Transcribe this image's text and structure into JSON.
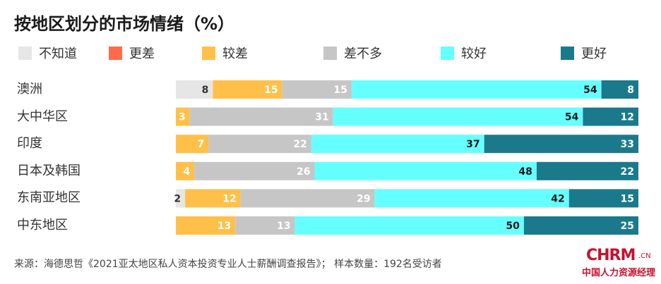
{
  "title": "按地区划分的市场情绪（%）",
  "source": "来源：海德思哲《2021亚太地区私人资本投资专业人士薪酬调查报告》；  样本数量：192名受访者",
  "logo": {
    "text": "CHRM",
    "suffix": ".CN",
    "subtitle": "中国人力资源经理"
  },
  "chart_data": {
    "type": "bar",
    "orientation": "horizontal",
    "stacked": true,
    "title": "按地区划分的市场情绪（%）",
    "unit": "%",
    "legend_position": "top",
    "grid": false,
    "categories": [
      "澳洲",
      "大中华区",
      "印度",
      "日本及韩国",
      "东南亚地区",
      "中东地区"
    ],
    "series": [
      {
        "name": "不知道",
        "color": "#e6e6e6",
        "label_color": "#333333",
        "values": [
          8,
          0,
          0,
          0,
          2,
          0
        ]
      },
      {
        "name": "更差",
        "color": "#ff6b4a",
        "label_color": "#ffffff",
        "values": [
          0,
          0,
          0,
          0,
          0,
          0
        ]
      },
      {
        "name": "较差",
        "color": "#ffc04a",
        "label_color": "#ffffff",
        "values": [
          15,
          3,
          7,
          4,
          12,
          13
        ]
      },
      {
        "name": "差不多",
        "color": "#c6c6c6",
        "label_color": "#ffffff",
        "values": [
          15,
          31,
          22,
          26,
          29,
          13
        ]
      },
      {
        "name": "较好",
        "color": "#66ffff",
        "label_color": "#1a1a1a",
        "values": [
          54,
          54,
          37,
          48,
          42,
          50
        ]
      },
      {
        "name": "更好",
        "color": "#1a7a8c",
        "label_color": "#ffffff",
        "values": [
          8,
          12,
          33,
          22,
          15,
          25
        ]
      }
    ]
  }
}
